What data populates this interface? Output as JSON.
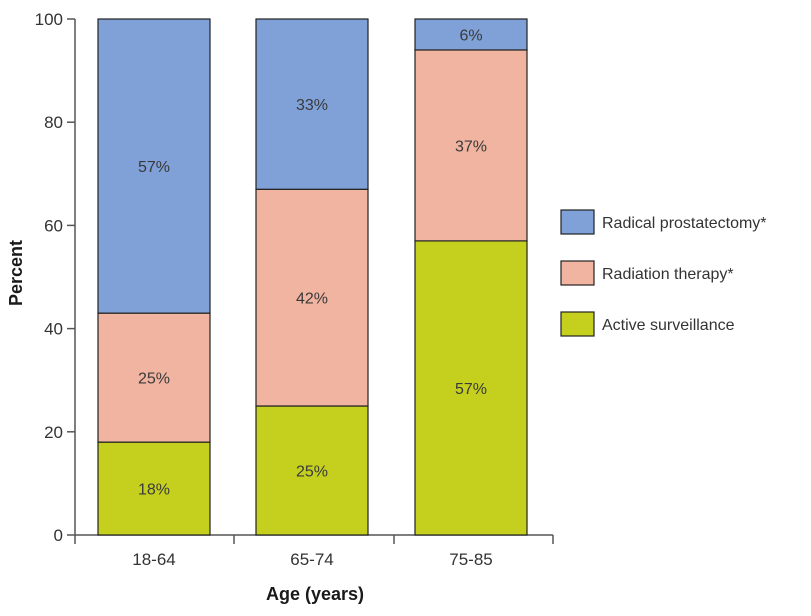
{
  "chart_data": {
    "type": "bar",
    "stacked": true,
    "title": "",
    "xlabel": "Age (years)",
    "ylabel": "Percent",
    "ylim": [
      0,
      100
    ],
    "yticks": [
      0,
      20,
      40,
      60,
      80,
      100
    ],
    "categories": [
      "18-64",
      "65-74",
      "75-85"
    ],
    "series": [
      {
        "name": "Active surveillance",
        "color": "#c5d01e",
        "values": [
          18,
          25,
          57
        ],
        "labels": [
          "18%",
          "25%",
          "57%"
        ]
      },
      {
        "name": "Radiation therapy*",
        "color": "#f0b4a0",
        "values": [
          25,
          42,
          37
        ],
        "labels": [
          "25%",
          "42%",
          "37%"
        ]
      },
      {
        "name": "Radical prostatectomy*",
        "color": "#7fa1d8",
        "values": [
          57,
          33,
          6
        ],
        "labels": [
          "57%",
          "33%",
          "6%"
        ]
      }
    ],
    "legend_order": [
      "Radical prostatectomy*",
      "Radiation therapy*",
      "Active surveillance"
    ],
    "legend_position": "right"
  }
}
